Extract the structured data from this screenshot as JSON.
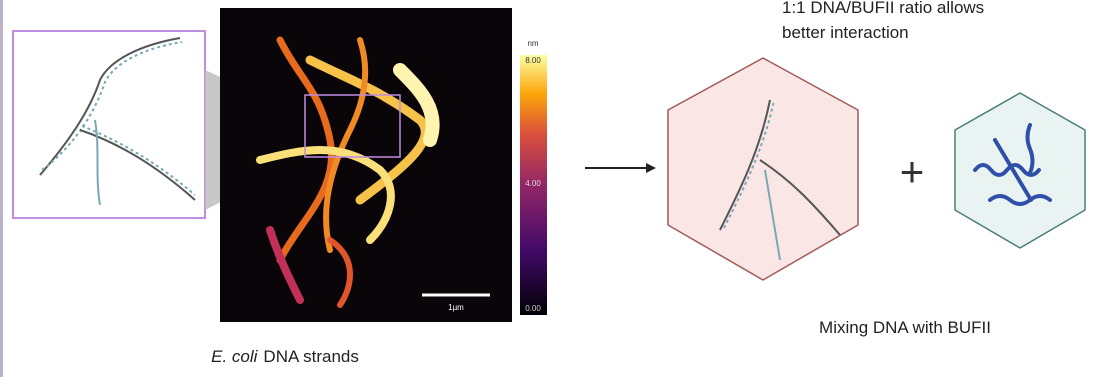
{
  "header": {
    "note_lines": [
      "1:1 DNA/BUFII ratio allows",
      "better interaction"
    ]
  },
  "afm_image": {
    "colorbar": {
      "unit": "nm",
      "labels": [
        "8.00",
        "4.00",
        "0.00"
      ]
    },
    "scale_bar": "1µm",
    "caption": {
      "italic": "E. coli",
      "rest": "DNA strands"
    }
  },
  "mixing": {
    "plus": "+",
    "caption": "Mixing DNA with BUFII"
  }
}
